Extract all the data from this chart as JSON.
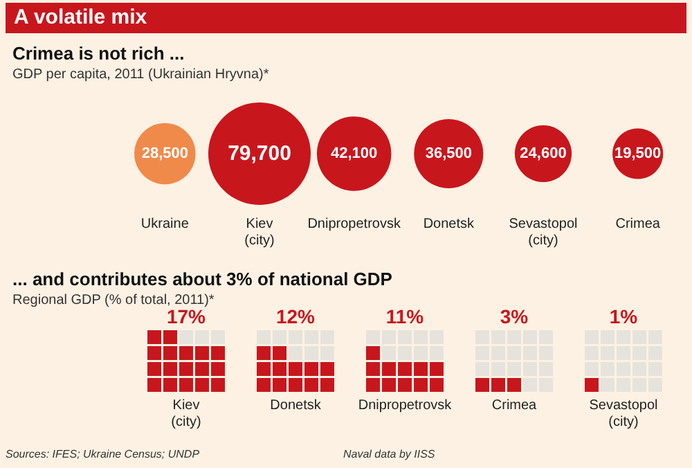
{
  "chart_data": [
    {
      "type": "other",
      "title": "A volatile mix"
    },
    {
      "type": "other",
      "title": "Crimea is not rich ...",
      "subtitle": "GDP per capita, 2011 (Ukrainian Hryvna)*",
      "categories": [
        "Ukraine",
        "Kiev\n(city)",
        "Dnipropetrovsk",
        "Donetsk",
        "Sevastopol\n(city)",
        "Crimea"
      ],
      "values": [
        28500,
        79700,
        42100,
        36500,
        24600,
        19500
      ],
      "value_labels": [
        "28,500",
        "79,700",
        "42,100",
        "36,500",
        "24,600",
        "19,500"
      ],
      "colors": [
        "#f08a4b",
        "#c8161d",
        "#c8161d",
        "#c8161d",
        "#c8161d",
        "#c8161d"
      ]
    },
    {
      "type": "other",
      "title": "... and contributes about 3% of national GDP",
      "subtitle": "Regional GDP (% of total, 2011)*",
      "categories": [
        "Kiev\n(city)",
        "Donetsk",
        "Dnipropetrovsk",
        "Crimea",
        "Sevastopol\n(city)"
      ],
      "values": [
        17,
        12,
        11,
        3,
        1
      ],
      "value_labels": [
        "17%",
        "12%",
        "11%",
        "3%",
        "1%"
      ],
      "color": "#c8161d",
      "annotations": [
        "Sources: IFES; Ukraine Census; UNDP",
        "Naval data by IISS"
      ]
    }
  ]
}
